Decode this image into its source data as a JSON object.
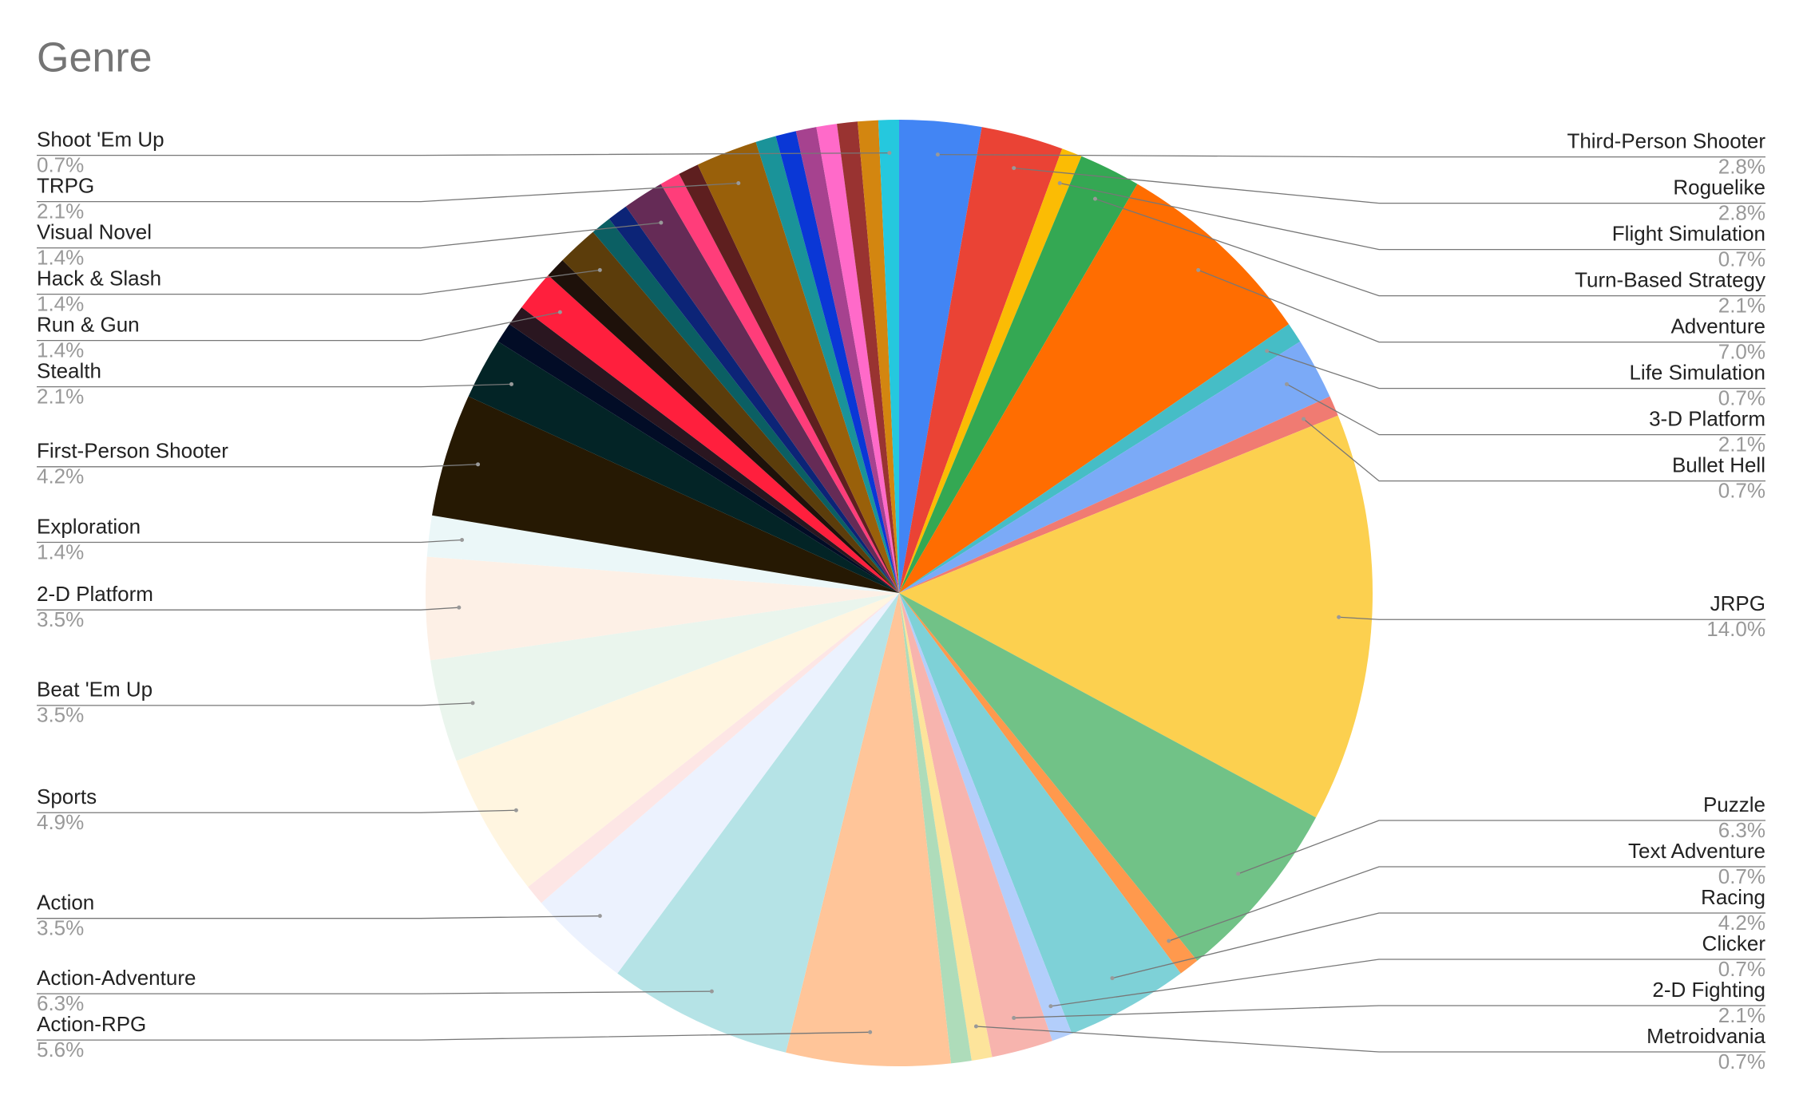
{
  "chart_data": {
    "type": "pie",
    "title": "Genre",
    "categories": [
      "Third-Person Shooter",
      "Roguelike",
      "Flight Simulation",
      "Turn-Based Strategy",
      "Adventure",
      "Life Simulation",
      "3-D Platform",
      "Bullet Hell",
      "JRPG",
      "Puzzle",
      "Text Adventure",
      "Racing",
      "Clicker",
      "2-D Fighting",
      "Metroidvania",
      null,
      "Action-RPG",
      "Action-Adventure",
      "Action",
      null,
      "Sports",
      "Beat 'Em Up",
      "2-D Platform",
      "Exploration",
      "First-Person Shooter",
      "Stealth",
      null,
      null,
      "Run & Gun",
      null,
      "Hack & Slash",
      null,
      null,
      "Visual Novel",
      null,
      null,
      "TRPG",
      null,
      null,
      null,
      null,
      null,
      null,
      "Shoot 'Em Up"
    ],
    "values": [
      2.8,
      2.8,
      0.7,
      2.1,
      7.0,
      0.7,
      2.1,
      0.7,
      14.0,
      6.3,
      0.7,
      4.2,
      0.7,
      2.1,
      0.7,
      0.7,
      5.6,
      6.3,
      3.5,
      0.7,
      4.9,
      3.5,
      3.5,
      1.4,
      4.2,
      2.1,
      0.7,
      0.7,
      1.4,
      0.7,
      1.4,
      0.7,
      0.7,
      1.4,
      0.7,
      0.7,
      2.1,
      0.7,
      0.7,
      0.7,
      0.7,
      0.7,
      0.7,
      0.7
    ],
    "value_labels": [
      "2.8%",
      "2.8%",
      "0.7%",
      "2.1%",
      "7.0%",
      "0.7%",
      "2.1%",
      "0.7%",
      "14.0%",
      "6.3%",
      "0.7%",
      "4.2%",
      "0.7%",
      "2.1%",
      "0.7%",
      null,
      "5.6%",
      "6.3%",
      "3.5%",
      null,
      "4.9%",
      "3.5%",
      "3.5%",
      "1.4%",
      "4.2%",
      "2.1%",
      null,
      null,
      "1.4%",
      null,
      "1.4%",
      null,
      null,
      "1.4%",
      null,
      null,
      "2.1%",
      null,
      null,
      null,
      null,
      null,
      null,
      "0.7%"
    ],
    "colors": [
      "#4285f4",
      "#ea4335",
      "#fbbc04",
      "#34a853",
      "#ff6d01",
      "#46bdc6",
      "#7baaf7",
      "#f07b72",
      "#fcd04f",
      "#71c287",
      "#ff994d",
      "#7ed1d7",
      "#b3cefb",
      "#f7b4ae",
      "#fde49b",
      "#aedcba",
      "#ffc599",
      "#b5e3e6",
      "#ecf2fe",
      "#fde6e5",
      "#fff5e0",
      "#eaf5ed",
      "#fdf0e6",
      "#ebf7f8",
      "#261903",
      "#032426",
      "#020c26",
      "#2a1620",
      "#ff1f3d",
      "#1e110a",
      "#5c3d0b",
      "#0b5f63",
      "#0c2477",
      "#652b56",
      "#ff3d7a",
      "#5e1f1f",
      "#99600a",
      "#1a9399",
      "#0a37d6",
      "#a6428f",
      "#ff6ac9",
      "#993331",
      "#d38610",
      "#25c8de"
    ]
  }
}
